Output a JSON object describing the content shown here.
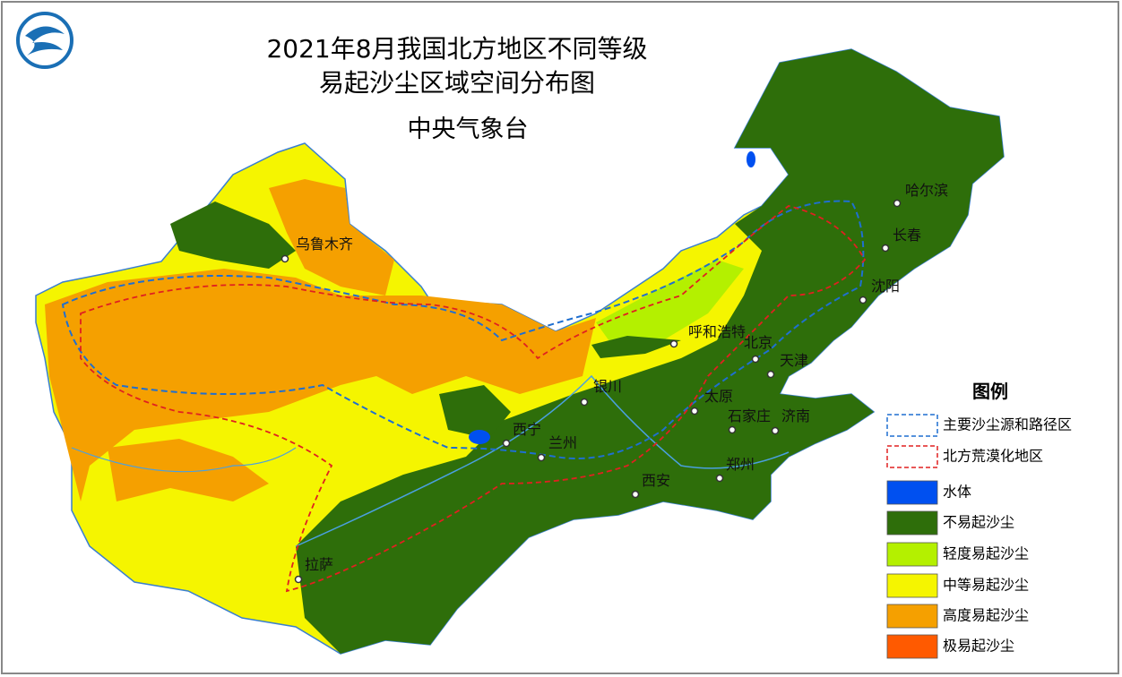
{
  "header": {
    "title_lines": [
      "2021年8月我国北方地区不同等级",
      "易起沙尘区域空间分布图"
    ],
    "agency": "中央气象台"
  },
  "legend": {
    "title": "图例",
    "items": [
      "主要沙尘源和路径区",
      "北方荒漠化地区",
      "水体",
      "不易起沙尘",
      "轻度易起沙尘",
      "中等易起沙尘",
      "高度易起沙尘",
      "极易起沙尘"
    ]
  },
  "cities": [
    "乌鲁木齐",
    "呼和浩特",
    "北京",
    "天津",
    "哈尔滨",
    "长春",
    "沈阳",
    "太原",
    "石家庄",
    "济南",
    "银川",
    "西宁",
    "兰州",
    "西安",
    "郑州",
    "拉萨"
  ]
}
